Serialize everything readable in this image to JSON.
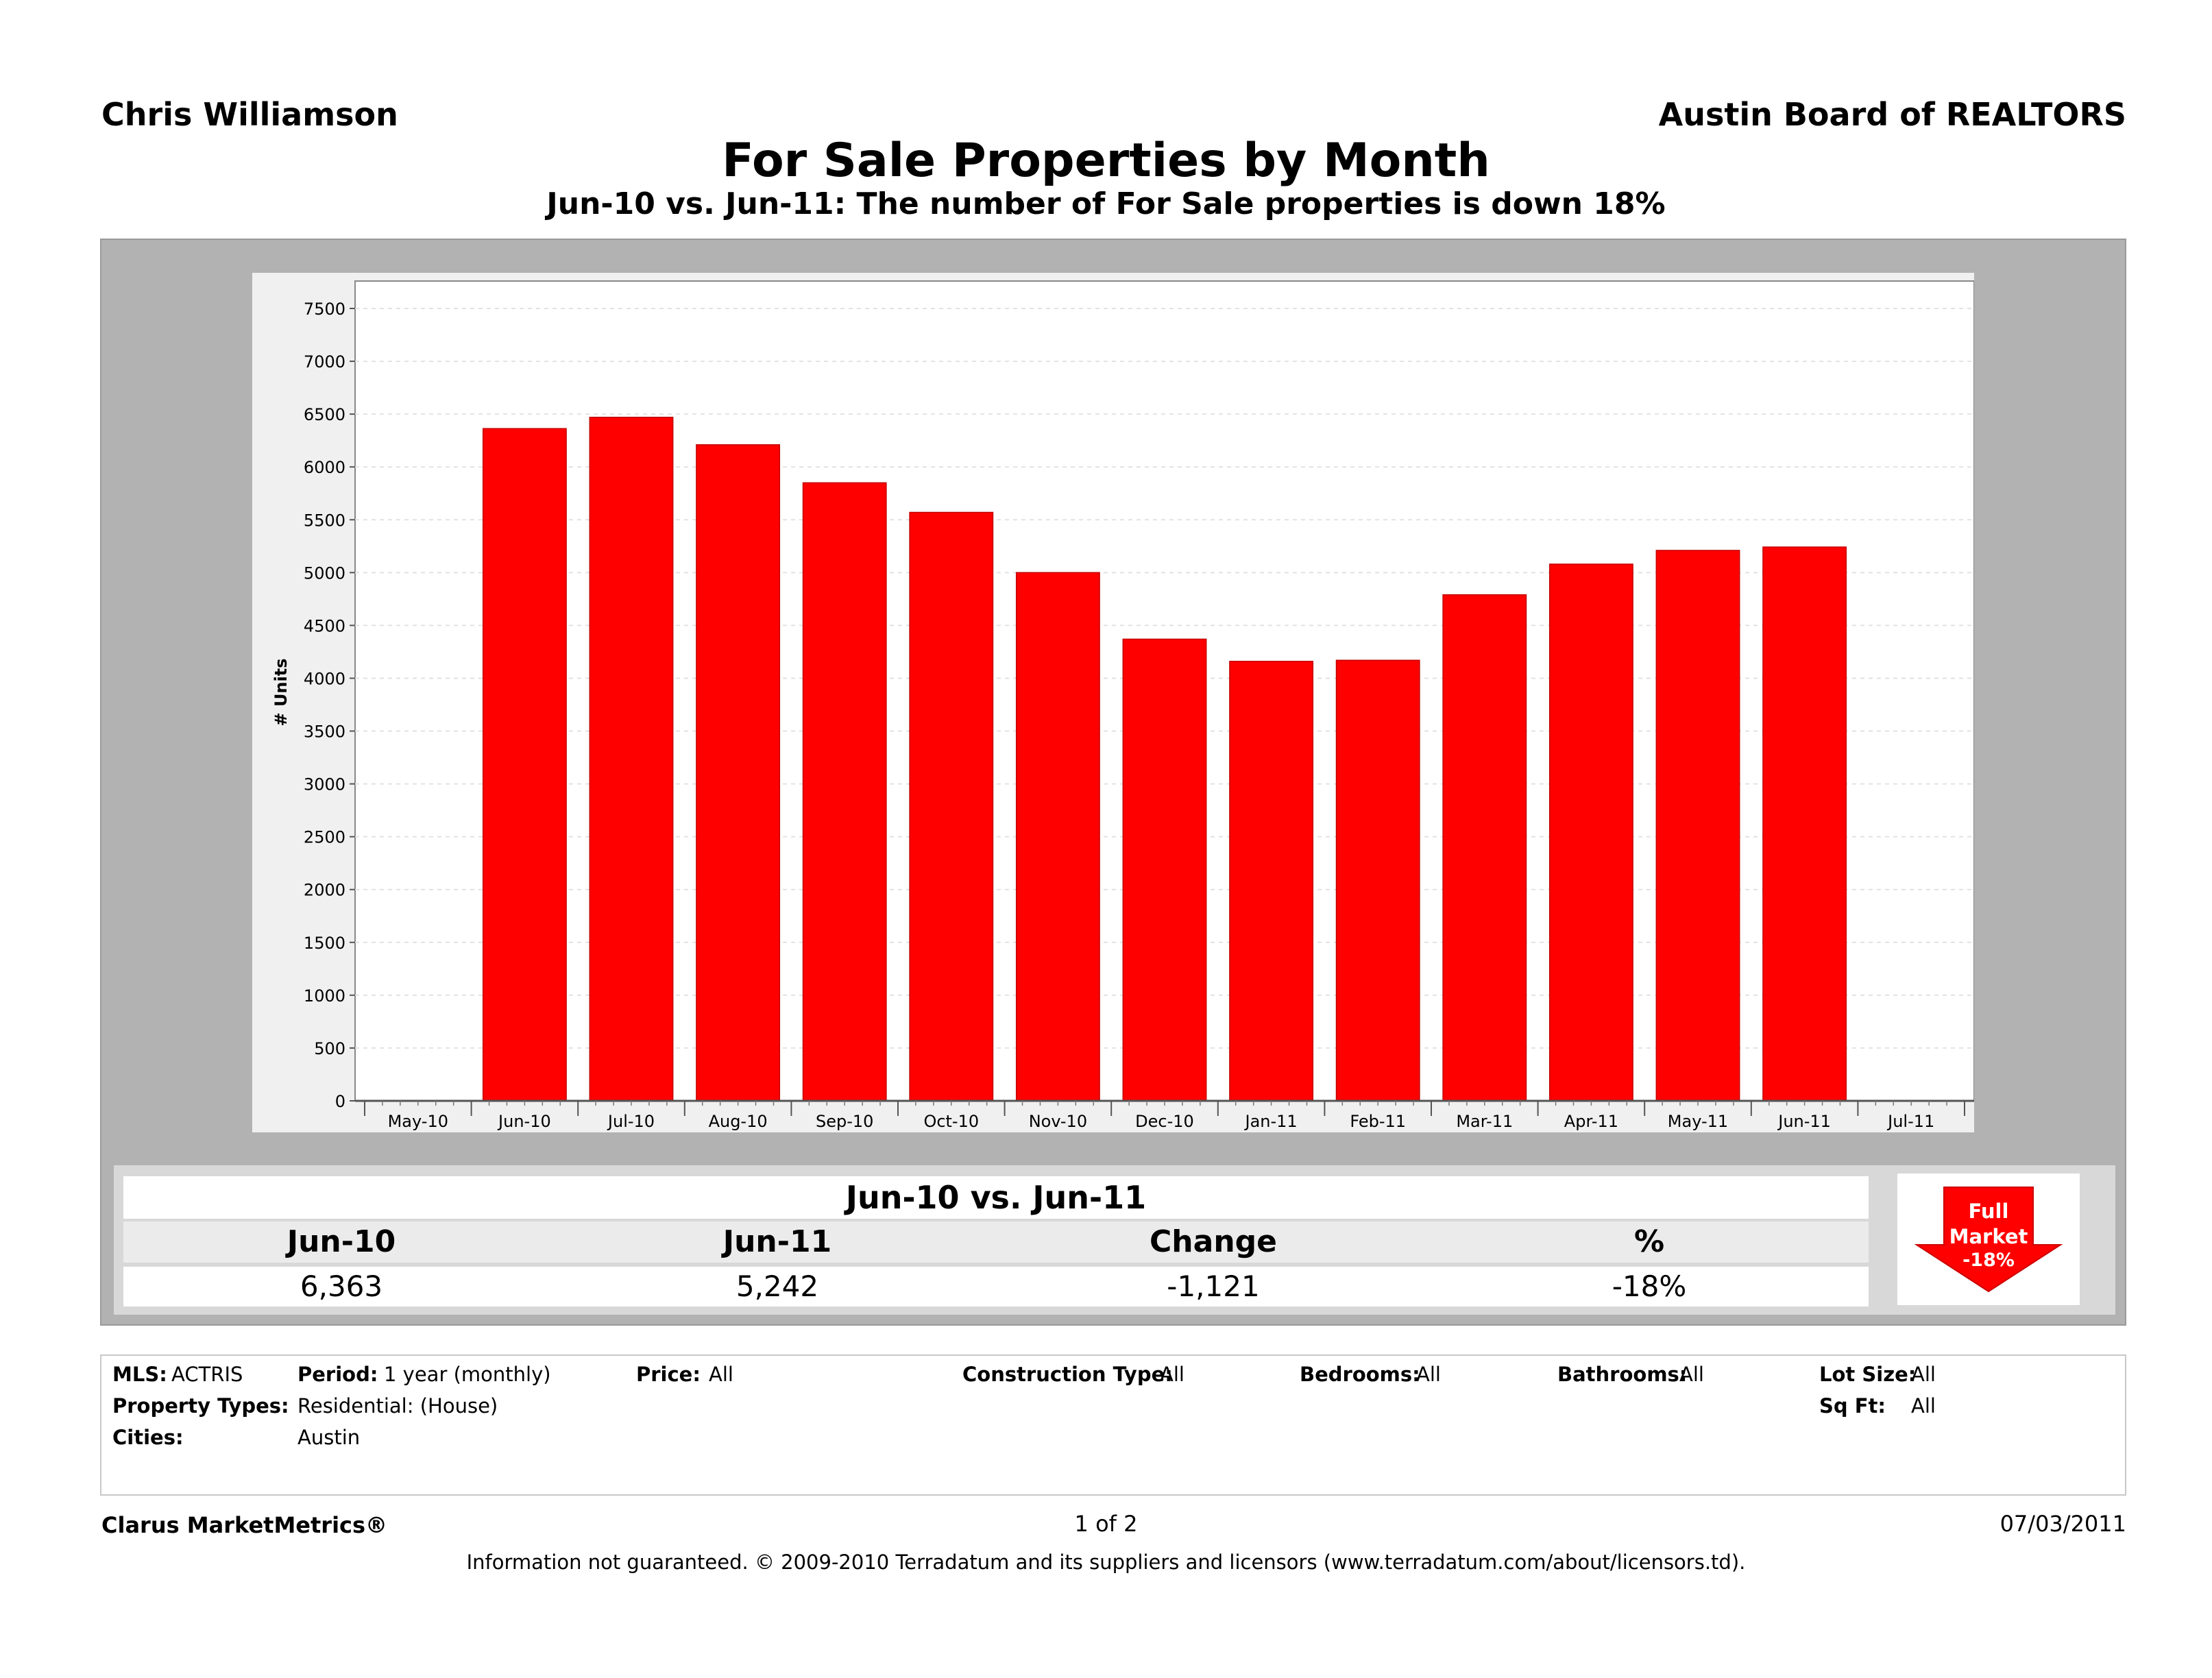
{
  "header": {
    "agent_name": "Chris Williamson",
    "board_name": "Austin Board of REALTORS",
    "title": "For Sale Properties by Month",
    "subtitle": "Jun-10 vs. Jun-11: The number of For Sale properties is down 18%"
  },
  "chart_data": {
    "type": "bar",
    "title": "For Sale Properties by Month",
    "ylabel": "# Units",
    "xlabel": "",
    "ylim": [
      0,
      7500
    ],
    "yticks": [
      0,
      500,
      1000,
      1500,
      2000,
      2500,
      3000,
      3500,
      4000,
      4500,
      5000,
      5500,
      6000,
      6500,
      7000,
      7500
    ],
    "x_tick_labels": [
      "May-10",
      "Jun-10",
      "Jul-10",
      "Aug-10",
      "Sep-10",
      "Oct-10",
      "Nov-10",
      "Dec-10",
      "Jan-11",
      "Feb-11",
      "Mar-11",
      "Apr-11",
      "May-11",
      "Jun-11",
      "Jul-11"
    ],
    "categories": [
      "Jun-10",
      "Jul-10",
      "Aug-10",
      "Sep-10",
      "Oct-10",
      "Nov-10",
      "Dec-10",
      "Jan-11",
      "Feb-11",
      "Mar-11",
      "Apr-11",
      "May-11",
      "Jun-11"
    ],
    "values": [
      6363,
      6470,
      6210,
      5850,
      5570,
      5000,
      4370,
      4160,
      4170,
      4790,
      5080,
      5210,
      5242
    ],
    "bar_color": "#ff0000",
    "grid": true,
    "legend": "none"
  },
  "summary": {
    "title": "Jun-10 vs. Jun-11",
    "headers": [
      "Jun-10",
      "Jun-11",
      "Change",
      "%"
    ],
    "values": [
      "6,363",
      "5,242",
      "-1,121",
      "-18%"
    ],
    "badge_line1": "Full",
    "badge_line2": "Market",
    "badge_line3": "-18%",
    "badge_color": "#ff0000"
  },
  "criteria": {
    "mls_label": "MLS:",
    "mls": "ACTRIS",
    "period_label": "Period:",
    "period": "1 year (monthly)",
    "price_label": "Price:",
    "price": "All",
    "construction_label": "Construction Type:",
    "construction": "All",
    "bedrooms_label": "Bedrooms:",
    "bedrooms": "All",
    "bathrooms_label": "Bathrooms:",
    "bathrooms": "All",
    "lot_label": "Lot Size:",
    "lot": "All",
    "property_label": "Property Types:",
    "property": "Residential: (House)",
    "sqft_label": "Sq Ft:",
    "sqft": "All",
    "cities_label": "Cities:",
    "cities": "Austin"
  },
  "footer": {
    "brand": "Clarus MarketMetrics®",
    "page": "1 of 2",
    "date": "07/03/2011",
    "disclaimer": "Information not guaranteed.  © 2009-2010 Terradatum and its suppliers and licensors (www.terradatum.com/about/licensors.td)."
  }
}
